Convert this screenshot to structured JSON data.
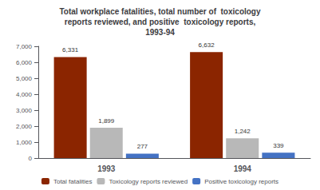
{
  "chart_data": {
    "type": "bar",
    "title": "Total workplace fatalities, total number of  toxicology\nreports reviewed, and positive  toxicology reports,\n1993-94",
    "categories": [
      "1993",
      "1994"
    ],
    "series": [
      {
        "name": "Total fatalities",
        "color": "#8B2500",
        "values": [
          6331,
          6632
        ],
        "value_labels": [
          "6,331",
          "6,632"
        ]
      },
      {
        "name": "Toxicology reports reviewed",
        "color": "#B8B8B8",
        "values": [
          1899,
          1242
        ],
        "value_labels": [
          "1,899",
          "1,242"
        ]
      },
      {
        "name": "Positive toxicology reports",
        "color": "#4472C4",
        "values": [
          277,
          339
        ]
      }
    ],
    "ylim": [
      0,
      7000
    ],
    "yticks": [
      0,
      {
        "value": 1000,
        "label": "1,000"
      },
      {
        "value": 2000,
        "label": "2,000"
      },
      {
        "value": 3000,
        "label": "3,000"
      },
      {
        "value": 4000,
        "label": "4,000"
      },
      {
        "value": 5000,
        "label": "5,000"
      },
      {
        "value": 6000,
        "label": "6,000"
      },
      {
        "value": 7000,
        "label": "7,000"
      }
    ],
    "grid": false,
    "legend": "bottom",
    "data_labels": true
  }
}
